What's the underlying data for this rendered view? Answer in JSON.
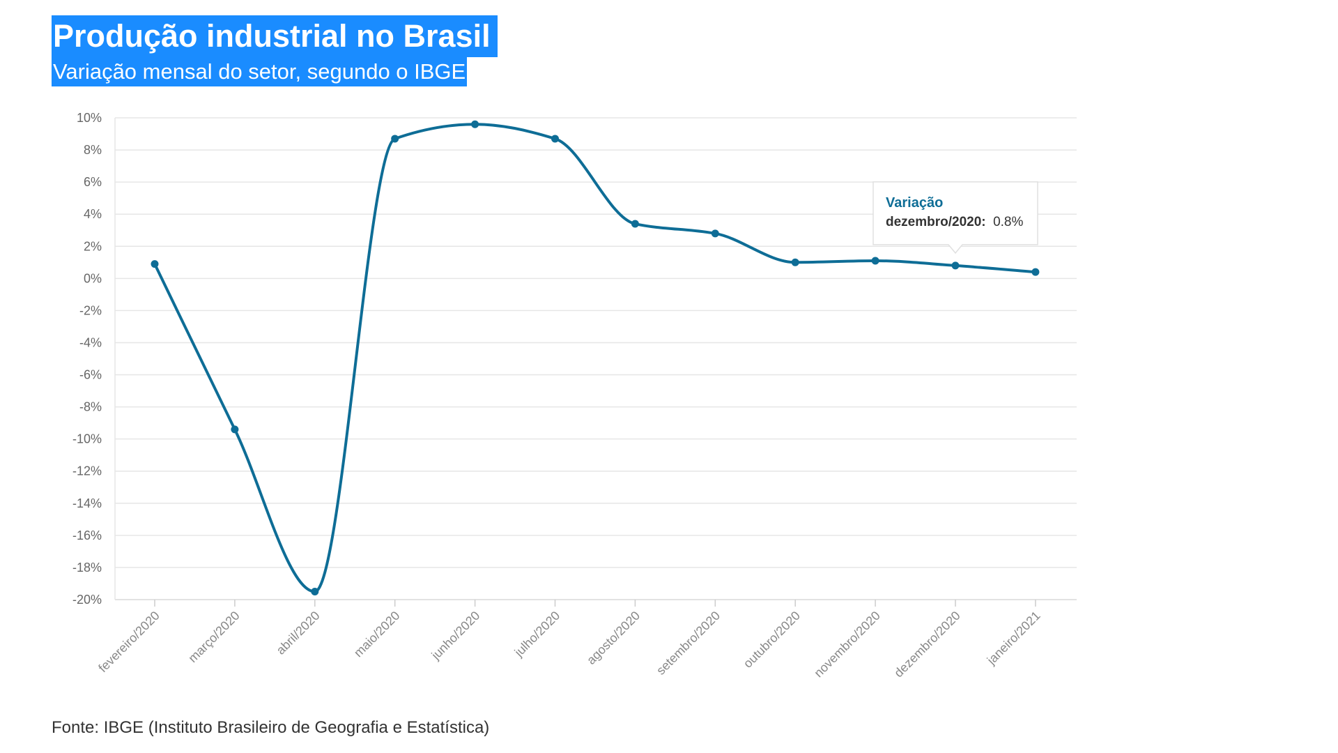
{
  "chart_data": {
    "type": "line",
    "title": "Produção industrial no Brasil",
    "subtitle": "Variação mensal do setor, segundo o IBGE",
    "categories": [
      "fevereiro/2020",
      "março/2020",
      "abril/2020",
      "maio/2020",
      "junho/2020",
      "julho/2020",
      "agosto/2020",
      "setembro/2020",
      "outubro/2020",
      "novembro/2020",
      "dezembro/2020",
      "janeiro/2021"
    ],
    "series": [
      {
        "name": "Variação",
        "values": [
          0.9,
          -9.4,
          -19.5,
          8.7,
          9.6,
          8.7,
          3.4,
          2.8,
          1.0,
          1.1,
          0.8,
          0.4
        ],
        "color": "#0e6d96"
      }
    ],
    "ylim": [
      -20,
      10
    ],
    "yticks": [
      10,
      8,
      6,
      4,
      2,
      0,
      -2,
      -4,
      -6,
      -8,
      -10,
      -12,
      -14,
      -16,
      -18,
      -20
    ],
    "ytick_labels": [
      "10%",
      "8%",
      "6%",
      "4%",
      "2%",
      "0%",
      "-2%",
      "-4%",
      "-6%",
      "-8%",
      "-10%",
      "-12%",
      "-14%",
      "-16%",
      "-18%",
      "-20%"
    ],
    "grid": true,
    "legend": "none",
    "tooltip": {
      "title": "Variação",
      "label": "dezembro/2020:",
      "value": "0.8%",
      "category": "dezembro/2020"
    },
    "source": "Fonte: IBGE (Instituto Brasileiro de Geografia e Estatística)"
  },
  "colors": {
    "title_background": "#1a8cff",
    "line": "#0e6d96",
    "grid": "#e6e6e6"
  }
}
